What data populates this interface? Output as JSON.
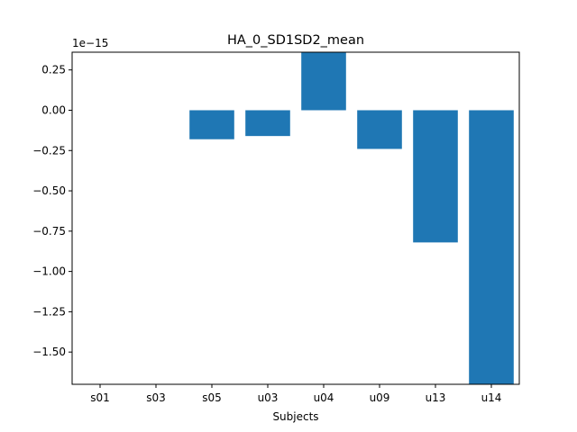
{
  "chart_data": {
    "type": "bar",
    "title": "HA_0_SD1SD2_mean",
    "xlabel": "Subjects",
    "ylabel": "",
    "y_offset_label": "1e−15",
    "categories": [
      "s01",
      "s03",
      "s05",
      "u03",
      "u04",
      "u09",
      "u13",
      "u14"
    ],
    "values": [
      0.0,
      0.0,
      -0.18,
      -0.16,
      0.36,
      -0.24,
      -0.82,
      -1.72
    ],
    "value_scale": "1e-15",
    "ylim": [
      -1.7,
      0.36
    ],
    "yticks": [
      0.25,
      0.0,
      -0.25,
      -0.5,
      -0.75,
      -1.0,
      -1.25,
      -1.5
    ],
    "ytick_labels": [
      "0.25",
      "0.00",
      "−0.25",
      "−0.50",
      "−0.75",
      "−1.00",
      "−1.25",
      "−1.50"
    ],
    "bar_color": "#1f77b4",
    "grid": false,
    "legend": "none"
  }
}
